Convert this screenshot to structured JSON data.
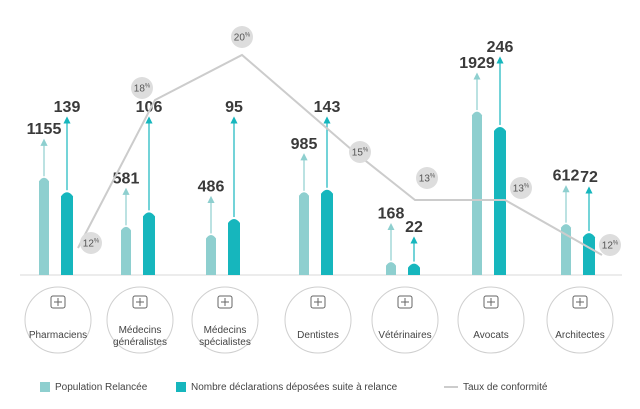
{
  "chart_data": {
    "type": "bar",
    "categories": [
      [
        "Pharmaciens"
      ],
      [
        "Médecins",
        "généralistes"
      ],
      [
        "Médecins",
        "spécialistes"
      ],
      [
        "Dentistes"
      ],
      [
        "Vétérinaires"
      ],
      [
        "Avocats"
      ],
      [
        "Architectes"
      ]
    ],
    "icons": [
      "caduceus-icon",
      "medical-kit-icon",
      "doctor-icon",
      "tooth-icon",
      "veterinary-icon",
      "lawyer-icon",
      "architect-icon"
    ],
    "series": [
      {
        "name": "Population Relancée",
        "values": [
          1155,
          581,
          486,
          985,
          168,
          1929,
          612
        ],
        "color": "#8ecfcf"
      },
      {
        "name": "Nombre déclarations déposées suite à relance",
        "values": [
          139,
          106,
          95,
          143,
          22,
          246,
          72
        ],
        "color": "#16b6bd"
      }
    ],
    "line": {
      "name": "Taux de conformité",
      "values": [
        12,
        18,
        20,
        15,
        13,
        13,
        12
      ],
      "unit": "%",
      "color": "#cccccc"
    },
    "legend_position": "bottom",
    "grid": false
  }
}
